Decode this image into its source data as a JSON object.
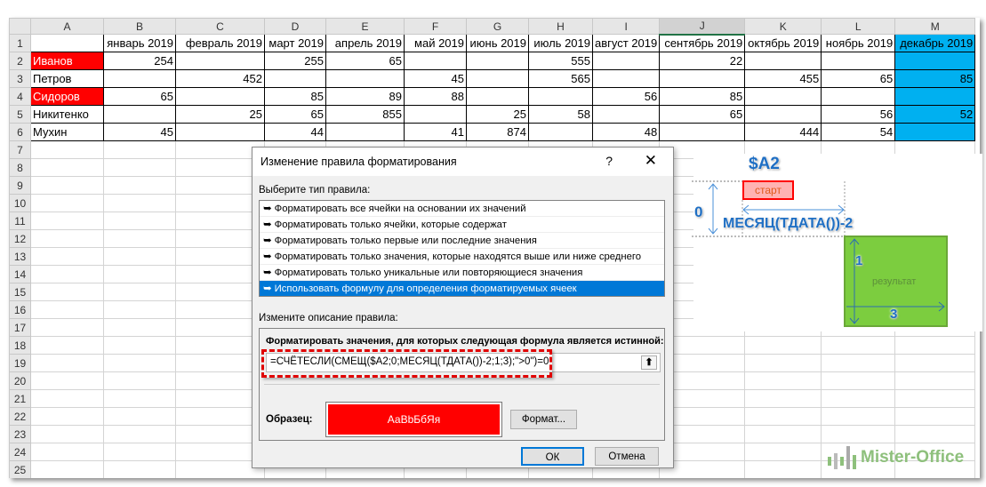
{
  "sheet": {
    "columns": [
      "A",
      "B",
      "C",
      "D",
      "E",
      "F",
      "G",
      "H",
      "I",
      "J",
      "K",
      "L",
      "M"
    ],
    "selected_column": "J",
    "headers": [
      "",
      "январь 2019",
      "февраль 2019",
      "март 2019",
      "апрель 2019",
      "май 2019",
      "июнь 2019",
      "июль 2019",
      "август 2019",
      "сентябрь 2019",
      "октябрь 2019",
      "ноябрь 2019",
      "декабрь 2019"
    ],
    "rows": [
      [
        "Иванов",
        "254",
        "",
        "255",
        "65",
        "",
        "",
        "555",
        "",
        "22",
        "",
        "",
        ""
      ],
      [
        "Петров",
        "",
        "452",
        "",
        "",
        "45",
        "",
        "565",
        "",
        "",
        "455",
        "65",
        "85"
      ],
      [
        "Сидоров",
        "65",
        "",
        "85",
        "89",
        "88",
        "",
        "",
        "56",
        "85",
        "",
        "",
        ""
      ],
      [
        "Никитенко",
        "",
        "25",
        "65",
        "855",
        "",
        "25",
        "58",
        "",
        "65",
        "",
        "56",
        "52"
      ],
      [
        "Мухин",
        "45",
        "",
        "44",
        "",
        "41",
        "874",
        "",
        "48",
        "",
        "444",
        "54",
        ""
      ]
    ],
    "highlighted_names": [
      "Иванов",
      "Сидоров"
    ],
    "row_count": 25,
    "colors": {
      "name_highlight": "#ff0000",
      "current_month": "#00b0f0"
    }
  },
  "dialog": {
    "title": "Изменение правила форматирования",
    "help": "?",
    "close": "✕",
    "rule_type_label": "Выберите тип правила:",
    "rule_types": [
      "Форматировать все ячейки на основании их значений",
      "Форматировать только ячейки, которые содержат",
      "Форматировать только первые или последние значения",
      "Форматировать только значения, которые находятся выше или ниже среднего",
      "Форматировать только уникальные или повторяющиеся значения",
      "Использовать формулу для определения форматируемых ячеек"
    ],
    "selected_rule": 5,
    "description_label": "Измените описание правила:",
    "formula_label": "Форматировать значения, для которых следующая формула является истинной:",
    "formula": "=СЧЁТЕСЛИ(СМЕЩ($A2;0;МЕСЯЦ(ТДАТА())-2;1;3);\">0\")=0",
    "sample_label": "Образец:",
    "sample_text": "АаBbБбЯя",
    "format_button": "Формат...",
    "ok": "ОК",
    "cancel": "Отмена"
  },
  "annotation": {
    "ref": "$A2",
    "start": "старт",
    "rows_offset": "0",
    "cols_offset": "МЕСЯЦ(ТДАТА())-2",
    "result": "результат",
    "height": "1",
    "width": "3"
  },
  "watermark": "Mister-Office"
}
